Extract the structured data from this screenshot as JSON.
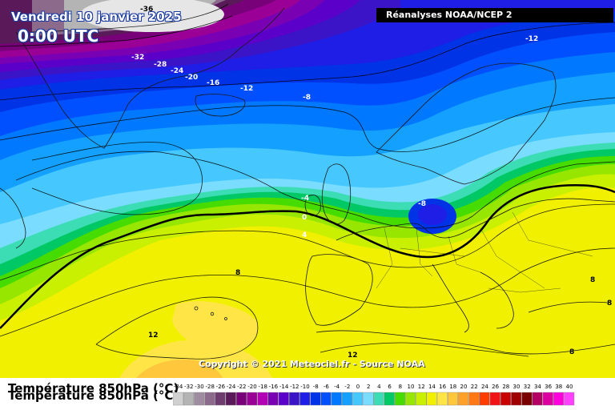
{
  "header": {
    "date": "Vendredi 10 janvier 2025",
    "time": "0:00 UTC",
    "source": "Réanalyses NOAA/NCEP 2"
  },
  "copyright": "Copyright © 2021 Meteociel.fr - Source NOAA",
  "legend": {
    "title": "Température 850hPa (°C)",
    "ticks": [
      "-34",
      "-32",
      "-30",
      "-28",
      "-26",
      "-24",
      "-22",
      "-20",
      "-18",
      "-16",
      "-14",
      "-12",
      "-10",
      "-8",
      "-6",
      "-4",
      "-2",
      "0",
      "2",
      "4",
      "6",
      "8",
      "10",
      "12",
      "14",
      "16",
      "18",
      "20",
      "22",
      "24",
      "26",
      "28",
      "30",
      "32",
      "34",
      "36",
      "38",
      "40"
    ],
    "colors": [
      "#d0d0d0",
      "#b4b4b4",
      "#a08ca0",
      "#8c6a8c",
      "#6e3c6e",
      "#5a1a5a",
      "#780078",
      "#9a0096",
      "#b400b4",
      "#7a00b4",
      "#5a00c8",
      "#3c14c8",
      "#1e1ee6",
      "#0032e6",
      "#0050ff",
      "#0078ff",
      "#14a0ff",
      "#46c8ff",
      "#7adcff",
      "#3cdcb4",
      "#00c864",
      "#46dc00",
      "#96e600",
      "#c8f000",
      "#f0f000",
      "#ffe646",
      "#ffc83c",
      "#ffa028",
      "#ff7814",
      "#ff3c00",
      "#f01414",
      "#c80000",
      "#a00000",
      "#780000",
      "#b40064",
      "#dc00a0",
      "#ff00dc",
      "#ff40ff"
    ]
  },
  "contour_labels": [
    {
      "text": "-36"
    },
    {
      "text": "-32"
    },
    {
      "text": "-28"
    },
    {
      "text": "-24"
    },
    {
      "text": "-20"
    },
    {
      "text": "-16"
    },
    {
      "text": "-12"
    },
    {
      "text": "-12"
    },
    {
      "text": "-8"
    },
    {
      "text": "-8"
    },
    {
      "text": "-4"
    },
    {
      "text": "0"
    },
    {
      "text": "4"
    },
    {
      "text": "8"
    },
    {
      "text": "8"
    },
    {
      "text": "8"
    },
    {
      "text": "12"
    },
    {
      "text": "12"
    },
    {
      "text": "8"
    }
  ]
}
